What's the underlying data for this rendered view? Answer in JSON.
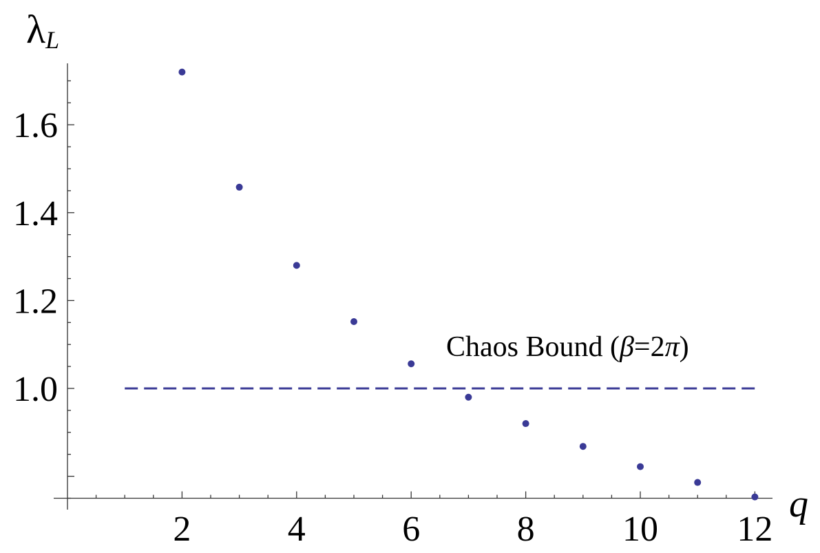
{
  "chart_data": {
    "type": "scatter",
    "xlabel": "q",
    "ylabel_symbol": "λ",
    "ylabel_subscript": "L",
    "x_ticks": [
      2,
      4,
      6,
      8,
      10,
      12
    ],
    "y_ticks": [
      1.0,
      1.2,
      1.4,
      1.6
    ],
    "xlim": [
      0,
      12.2
    ],
    "ylim": [
      0.75,
      1.73
    ],
    "grid": false,
    "points": [
      {
        "x": 2,
        "y": 1.72
      },
      {
        "x": 3,
        "y": 1.458
      },
      {
        "x": 4,
        "y": 1.28
      },
      {
        "x": 5,
        "y": 1.152
      },
      {
        "x": 6,
        "y": 1.056
      },
      {
        "x": 7,
        "y": 0.98
      },
      {
        "x": 8,
        "y": 0.92
      },
      {
        "x": 9,
        "y": 0.868
      },
      {
        "x": 10,
        "y": 0.822
      },
      {
        "x": 11,
        "y": 0.786
      },
      {
        "x": 12,
        "y": 0.753
      }
    ],
    "bound_line": {
      "y": 1.0,
      "x_start": 1,
      "x_end": 12,
      "style": "dashed"
    },
    "annotation": {
      "prefix": "Chaos Bound (",
      "beta": "β",
      "equals": "=2",
      "pi": "π",
      "suffix": ")"
    },
    "colors": {
      "points": "#3a3a96",
      "bound": "#3a3a96"
    }
  }
}
